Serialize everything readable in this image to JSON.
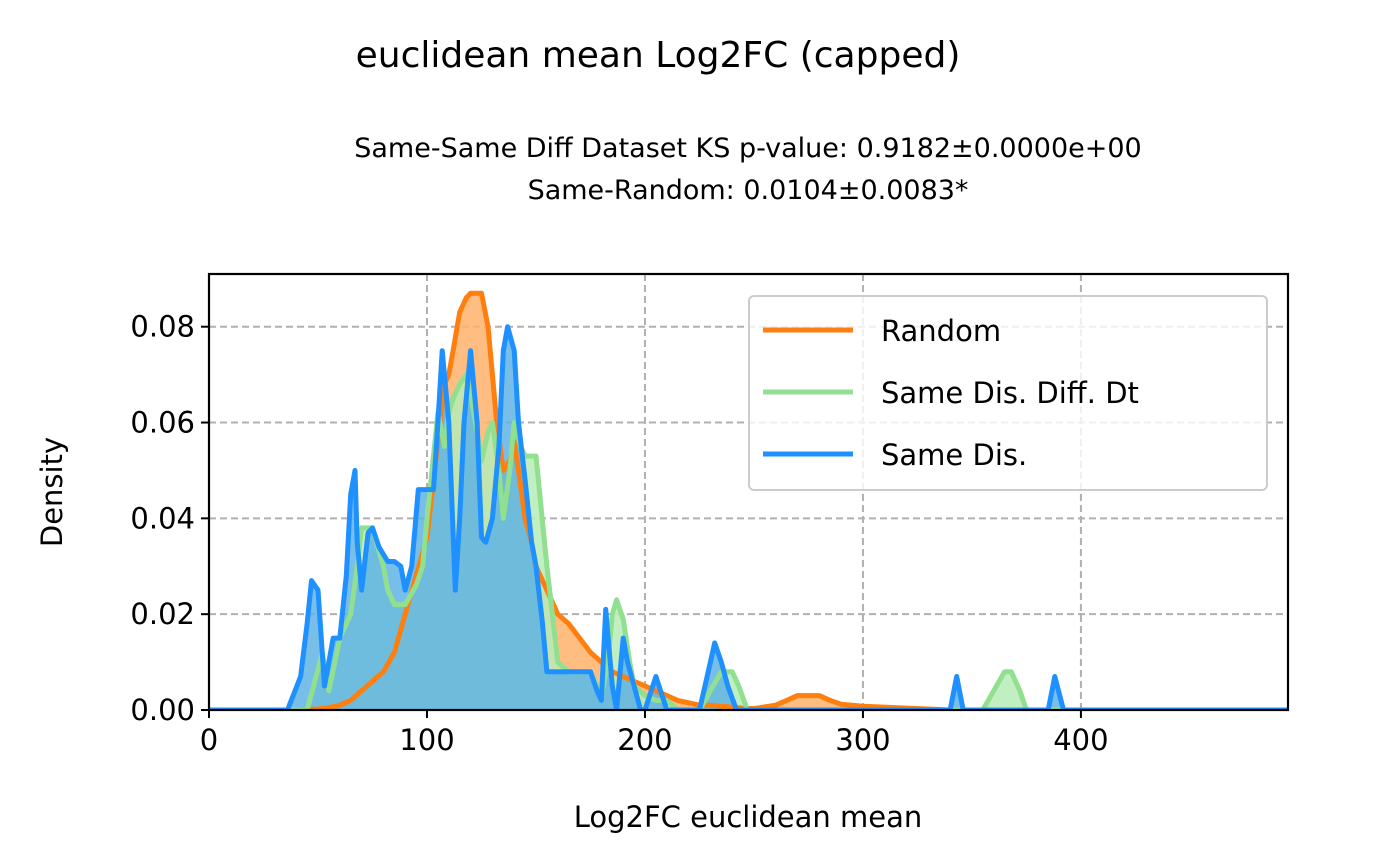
{
  "chart_data": {
    "type": "area",
    "title": "euclidean mean Log2FC (capped)",
    "subtitle_lines": [
      "Same-Same Diff Dataset  KS p-value: 0.9182±0.0000e+00",
      "Same-Random: 0.0104±0.0083*"
    ],
    "xlabel": "Log2FC euclidean mean",
    "ylabel": "Density",
    "xlim": [
      0,
      495
    ],
    "ylim": [
      0,
      0.091
    ],
    "xticks": [
      0,
      100,
      200,
      300,
      400
    ],
    "xtick_labels": [
      "0",
      "100",
      "200",
      "300",
      "400"
    ],
    "yticks": [
      0,
      0.02,
      0.04,
      0.06,
      0.08
    ],
    "ytick_labels": [
      "0.00",
      "0.02",
      "0.04",
      "0.06",
      "0.08"
    ],
    "grid": true,
    "legend_position": "upper right",
    "series": [
      {
        "name": "Random",
        "color": "#ff7f0e",
        "fill_color": "#ffb26b",
        "x": [
          0,
          40,
          50,
          55,
          60,
          65,
          70,
          75,
          80,
          85,
          90,
          95,
          100,
          103,
          106,
          108,
          110,
          112,
          115,
          118,
          120,
          122,
          125,
          128,
          130,
          132,
          135,
          138,
          140,
          142,
          145,
          148,
          150,
          155,
          160,
          165,
          170,
          175,
          180,
          185,
          190,
          195,
          200,
          205,
          210,
          215,
          220,
          225,
          230,
          235,
          240,
          245,
          250,
          260,
          265,
          270,
          275,
          280,
          285,
          290,
          300,
          330,
          335,
          340,
          350,
          360,
          400,
          495
        ],
        "y": [
          0,
          0,
          0.0002,
          0.0005,
          0.001,
          0.002,
          0.004,
          0.006,
          0.008,
          0.012,
          0.02,
          0.028,
          0.036,
          0.048,
          0.06,
          0.068,
          0.07,
          0.075,
          0.083,
          0.086,
          0.087,
          0.087,
          0.087,
          0.08,
          0.07,
          0.06,
          0.05,
          0.052,
          0.056,
          0.05,
          0.04,
          0.035,
          0.03,
          0.025,
          0.02,
          0.018,
          0.015,
          0.012,
          0.01,
          0.008,
          0.007,
          0.006,
          0.005,
          0.004,
          0.003,
          0.002,
          0.0015,
          0.001,
          0.001,
          0.0008,
          0.0006,
          0.0004,
          0.0003,
          0.001,
          0.002,
          0.003,
          0.003,
          0.003,
          0.002,
          0.0012,
          0.0008,
          0.0002,
          0.0001,
          0,
          0,
          0,
          0,
          0
        ]
      },
      {
        "name": "Same Dis. Diff. Dt",
        "color": "#90e090",
        "fill_color": "#b7ecb7",
        "x": [
          0,
          45,
          48,
          52,
          55,
          60,
          65,
          68,
          70,
          75,
          80,
          82,
          85,
          90,
          95,
          98,
          100,
          105,
          108,
          110,
          112,
          115,
          118,
          120,
          123,
          125,
          128,
          130,
          133,
          135,
          138,
          140,
          143,
          145,
          148,
          150,
          155,
          160,
          165,
          170,
          175,
          178,
          180,
          183,
          185,
          187,
          190,
          193,
          195,
          200,
          205,
          210,
          215,
          225,
          230,
          235,
          240,
          243,
          247,
          250,
          350,
          355,
          360,
          365,
          368,
          372,
          375,
          495
        ],
        "y": [
          0,
          0,
          0.005,
          0.012,
          0.004,
          0.015,
          0.02,
          0.03,
          0.038,
          0.038,
          0.03,
          0.025,
          0.022,
          0.022,
          0.026,
          0.03,
          0.04,
          0.062,
          0.055,
          0.062,
          0.065,
          0.068,
          0.07,
          0.066,
          0.058,
          0.052,
          0.058,
          0.06,
          0.05,
          0.04,
          0.05,
          0.06,
          0.055,
          0.053,
          0.053,
          0.053,
          0.03,
          0.01,
          0.008,
          0.008,
          0.008,
          0.005,
          0.003,
          0.01,
          0.02,
          0.023,
          0.019,
          0.01,
          0.005,
          0.003,
          0.002,
          0.002,
          0,
          0,
          0.004,
          0.008,
          0.008,
          0.005,
          0,
          0,
          0,
          0,
          0.004,
          0.008,
          0.008,
          0.004,
          0,
          0
        ]
      },
      {
        "name": "Same Dis.",
        "color": "#1e90ff",
        "fill_color": "#5fb4e4",
        "x": [
          0,
          36,
          42,
          45,
          47,
          50,
          53,
          57,
          60,
          63,
          65,
          67,
          68,
          70,
          73,
          75,
          78,
          82,
          85,
          88,
          90,
          93,
          96,
          100,
          103,
          105,
          107,
          110,
          113,
          115,
          117,
          120,
          123,
          125,
          127,
          130,
          133,
          135,
          137,
          140,
          142,
          145,
          148,
          150,
          153,
          155,
          160,
          165,
          170,
          175,
          178,
          180,
          182,
          185,
          187,
          190,
          192,
          195,
          198,
          200,
          205,
          210,
          215,
          225,
          229,
          232,
          235,
          238,
          242,
          245,
          335,
          340,
          343,
          346,
          380,
          385,
          388,
          392,
          495
        ],
        "y": [
          0,
          0,
          0.007,
          0.018,
          0.027,
          0.025,
          0.005,
          0.015,
          0.015,
          0.028,
          0.045,
          0.05,
          0.035,
          0.025,
          0.037,
          0.038,
          0.034,
          0.031,
          0.031,
          0.03,
          0.025,
          0.03,
          0.046,
          0.046,
          0.046,
          0.06,
          0.075,
          0.06,
          0.025,
          0.04,
          0.06,
          0.075,
          0.06,
          0.036,
          0.035,
          0.04,
          0.055,
          0.075,
          0.08,
          0.075,
          0.06,
          0.048,
          0.035,
          0.03,
          0.018,
          0.008,
          0.008,
          0.008,
          0.008,
          0.008,
          0.004,
          0.002,
          0.021,
          0.005,
          0,
          0.015,
          0.01,
          0.005,
          0,
          0,
          0.007,
          0,
          0,
          0,
          0.008,
          0.014,
          0.01,
          0.005,
          0,
          0,
          0,
          0,
          0.007,
          0,
          0,
          0,
          0.007,
          0,
          0
        ]
      }
    ]
  }
}
